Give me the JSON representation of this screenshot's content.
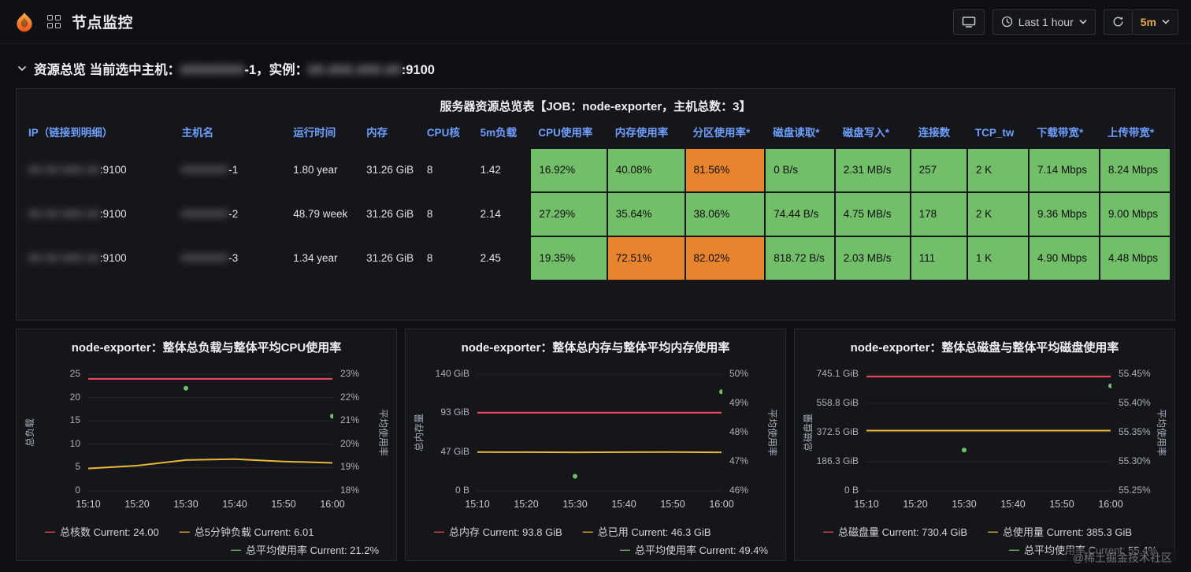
{
  "colors": {
    "green_cell": "#73BF69",
    "orange_cell": "#E8842D",
    "header_link": "#6E9FFF"
  },
  "topbar": {
    "title": "节点监控",
    "time_range": "Last 1 hour",
    "refresh_interval": "5m"
  },
  "section": {
    "prefix": "资源总览 当前选中主机：",
    "host_hidden": "########",
    "host_suffix": "-1，实例：",
    "instance_hidden": "##.###.###.##",
    "instance_suffix": ":9100"
  },
  "table": {
    "title": "服务器资源总览表【JOB：node-exporter，主机总数：3】",
    "headers": [
      "IP（链接到明细）",
      "主机名",
      "运行时间",
      "内存",
      "CPU核",
      "5m负载",
      "CPU使用率",
      "内存使用率",
      "分区使用率*",
      "磁盘读取*",
      "磁盘写入*",
      "连接数",
      "TCP_tw",
      "下载带宽*",
      "上传带宽*"
    ],
    "rows": [
      {
        "ip_hidden": "##.##.###.##",
        "ip_suffix": ":9100",
        "host_hidden": "#######",
        "host_suffix": "-1",
        "uptime": "1.80 year",
        "memory": "31.26 GiB",
        "cores": "8",
        "load_5m": "1.42",
        "status": [
          {
            "v": "16.92%",
            "c": "green"
          },
          {
            "v": "40.08%",
            "c": "green"
          },
          {
            "v": "81.56%",
            "c": "orange"
          },
          {
            "v": "0 B/s",
            "c": "green"
          },
          {
            "v": "2.31 MB/s",
            "c": "green"
          },
          {
            "v": "257",
            "c": "green"
          },
          {
            "v": "2 K",
            "c": "green"
          },
          {
            "v": "7.14 Mbps",
            "c": "green"
          },
          {
            "v": "8.24 Mbps",
            "c": "green"
          }
        ]
      },
      {
        "ip_hidden": "##.##.###.##",
        "ip_suffix": ":9100",
        "host_hidden": "#######",
        "host_suffix": "-2",
        "uptime": "48.79 week",
        "memory": "31.26 GiB",
        "cores": "8",
        "load_5m": "2.14",
        "status": [
          {
            "v": "27.29%",
            "c": "green"
          },
          {
            "v": "35.64%",
            "c": "green"
          },
          {
            "v": "38.06%",
            "c": "green"
          },
          {
            "v": "74.44 B/s",
            "c": "green"
          },
          {
            "v": "4.75 MB/s",
            "c": "green"
          },
          {
            "v": "178",
            "c": "green"
          },
          {
            "v": "2 K",
            "c": "green"
          },
          {
            "v": "9.36 Mbps",
            "c": "green"
          },
          {
            "v": "9.00 Mbps",
            "c": "green"
          }
        ]
      },
      {
        "ip_hidden": "##.##.###.##",
        "ip_suffix": ":9100",
        "host_hidden": "#######",
        "host_suffix": "-3",
        "uptime": "1.34 year",
        "memory": "31.26 GiB",
        "cores": "8",
        "load_5m": "2.45",
        "status": [
          {
            "v": "19.35%",
            "c": "green"
          },
          {
            "v": "72.51%",
            "c": "orange"
          },
          {
            "v": "82.02%",
            "c": "orange"
          },
          {
            "v": "818.72 B/s",
            "c": "green"
          },
          {
            "v": "2.03 MB/s",
            "c": "green"
          },
          {
            "v": "111",
            "c": "green"
          },
          {
            "v": "1 K",
            "c": "green"
          },
          {
            "v": "4.90 Mbps",
            "c": "green"
          },
          {
            "v": "4.48 Mbps",
            "c": "green"
          }
        ]
      }
    ]
  },
  "watermark": "@稀土掘金技术社区",
  "chart_data": [
    {
      "type": "line",
      "title": "node-exporter：整体总负载与整体平均CPU使用率",
      "x": [
        "15:10",
        "15:20",
        "15:30",
        "15:40",
        "15:50",
        "16:00"
      ],
      "left_axis": {
        "label": "总负载",
        "ticks": [
          "0",
          "5",
          "10",
          "15",
          "20",
          "25"
        ],
        "min": 0,
        "max": 25
      },
      "right_axis": {
        "label": "平均使用率",
        "ticks": [
          "18%",
          "19%",
          "20%",
          "21%",
          "22%",
          "23%"
        ],
        "min": 18,
        "max": 23
      },
      "series": [
        {
          "name": "总核数",
          "color": "#F2495C",
          "axis": "left",
          "style": "line",
          "values": [
            24,
            24,
            24,
            24,
            24,
            24
          ],
          "current": "24.00"
        },
        {
          "name": "总5分钟负载",
          "color": "#EAB839",
          "axis": "left",
          "style": "line",
          "values": [
            4.8,
            5.4,
            6.6,
            6.8,
            6.3,
            6.0
          ],
          "current": "6.01"
        },
        {
          "name": "总平均使用率",
          "color": "#73BF69",
          "axis": "right",
          "style": "points",
          "values": [
            null,
            null,
            22.4,
            null,
            null,
            21.2
          ],
          "current": "21.2%"
        }
      ]
    },
    {
      "type": "line",
      "title": "node-exporter：整体总内存与整体平均内存使用率",
      "x": [
        "15:10",
        "15:20",
        "15:30",
        "15:40",
        "15:50",
        "16:00"
      ],
      "left_axis": {
        "label": "总内存量",
        "ticks": [
          "0 B",
          "47 GiB",
          "93 GiB",
          "140 GiB"
        ],
        "min": 0,
        "max": 140
      },
      "right_axis": {
        "label": "平均使用率",
        "ticks": [
          "46%",
          "47%",
          "48%",
          "49%",
          "50%"
        ],
        "min": 46,
        "max": 50
      },
      "series": [
        {
          "name": "总内存",
          "color": "#F2495C",
          "axis": "left",
          "style": "line",
          "values": [
            93.8,
            93.8,
            93.8,
            93.8,
            93.8,
            93.8
          ],
          "current": "93.8 GiB"
        },
        {
          "name": "总已用",
          "color": "#EAB839",
          "axis": "left",
          "style": "line",
          "values": [
            46.5,
            46.4,
            46.3,
            46.4,
            46.5,
            46.3
          ],
          "current": "46.3 GiB"
        },
        {
          "name": "总平均使用率",
          "color": "#73BF69",
          "axis": "right",
          "style": "points",
          "values": [
            null,
            null,
            46.5,
            null,
            null,
            49.4
          ],
          "current": "49.4%"
        }
      ]
    },
    {
      "type": "line",
      "title": "node-exporter：整体总磁盘与整体平均磁盘使用率",
      "x": [
        "15:10",
        "15:20",
        "15:30",
        "15:40",
        "15:50",
        "16:00"
      ],
      "left_axis": {
        "label": "总磁盘量",
        "ticks": [
          "0 B",
          "186.3 GiB",
          "372.5 GiB",
          "558.8 GiB",
          "745.1 GiB"
        ],
        "min": 0,
        "max": 745.1
      },
      "right_axis": {
        "label": "平均使用率",
        "ticks": [
          "55.25%",
          "55.30%",
          "55.35%",
          "55.40%",
          "55.45%"
        ],
        "min": 55.25,
        "max": 55.45
      },
      "series": [
        {
          "name": "总磁盘量",
          "color": "#F2495C",
          "axis": "left",
          "style": "line",
          "values": [
            730.4,
            730.4,
            730.4,
            730.4,
            730.4,
            730.4
          ],
          "current": "730.4 GiB"
        },
        {
          "name": "总使用量",
          "color": "#EAB839",
          "axis": "left",
          "style": "line",
          "values": [
            385.3,
            385.3,
            385.3,
            385.3,
            385.3,
            385.3
          ],
          "current": "385.3 GiB"
        },
        {
          "name": "总平均使用率",
          "color": "#73BF69",
          "axis": "right",
          "style": "points",
          "values": [
            null,
            null,
            55.32,
            null,
            null,
            55.43
          ],
          "current": "55.4%"
        }
      ]
    }
  ]
}
